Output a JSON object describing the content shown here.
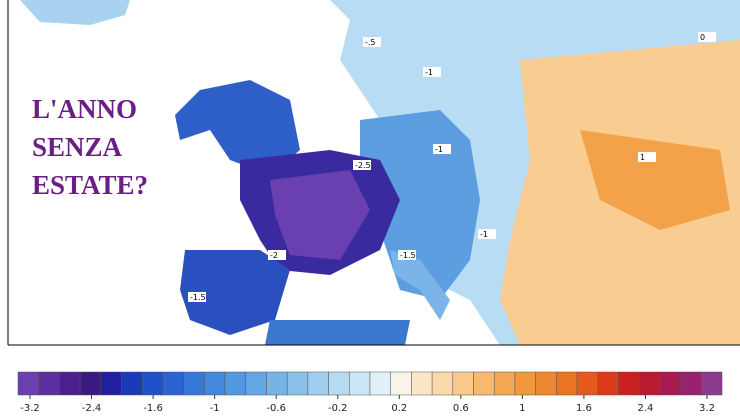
{
  "title_lines": [
    "L'ANNO",
    "SENZA",
    "ESTATE?"
  ],
  "contour_labels": [
    "-2.5",
    "-2",
    "-1.5",
    "-1",
    "-.5",
    "-1",
    "-1.5",
    "-1",
    "1",
    "0"
  ],
  "colorbar": {
    "ticks": [
      -3.2,
      -2.4,
      -1.6,
      -1,
      -0.6,
      -0.2,
      0.2,
      0.6,
      1,
      1.6,
      2.4,
      3.2
    ],
    "colors": [
      "#6a3fb0",
      "#5a2fa0",
      "#4a2090",
      "#3a1a80",
      "#2020a0",
      "#1a3ab8",
      "#2050c8",
      "#2a64d0",
      "#3478d8",
      "#4288dc",
      "#5098e0",
      "#62a6e4",
      "#76b4e8",
      "#8ac2ec",
      "#a0cef0",
      "#b6daf2",
      "#cce6f6",
      "#e2f0fa",
      "#f8f4ea",
      "#fbe6c6",
      "#fbd8a8",
      "#fac88a",
      "#f8b870",
      "#f6a855",
      "#f2983e",
      "#ee8830",
      "#ea7424",
      "#e45a1c",
      "#dc3a18",
      "#cc2020",
      "#b81a30",
      "#a81a50",
      "#9a2070",
      "#8a3a90"
    ]
  }
}
